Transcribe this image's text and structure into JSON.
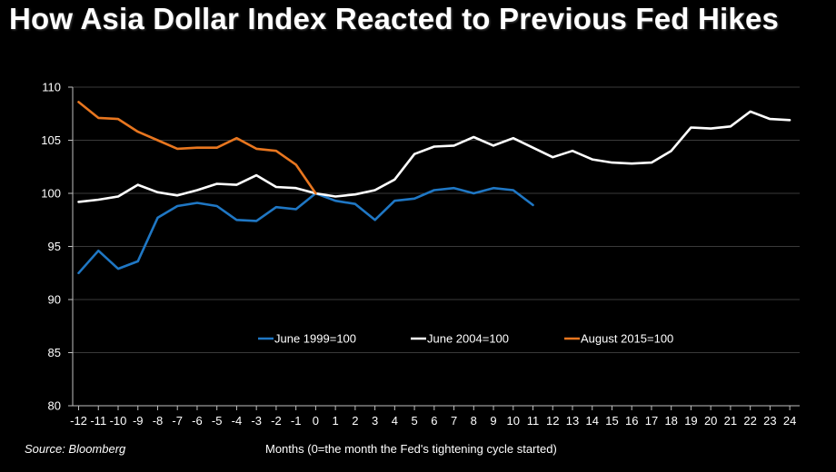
{
  "title": "How Asia Dollar Index Reacted to Previous Fed Hikes",
  "source": "Source: Bloomberg",
  "chart_data": {
    "type": "line",
    "title": "How Asia Dollar Index Reacted to Previous Fed Hikes",
    "xlabel": "Months (0=the  month the Fed's tightening cycle started)",
    "ylabel": "",
    "x": [
      -12,
      -11,
      -10,
      -9,
      -8,
      -7,
      -6,
      -5,
      -4,
      -3,
      -2,
      -1,
      0,
      1,
      2,
      3,
      4,
      5,
      6,
      7,
      8,
      9,
      10,
      11,
      12,
      13,
      14,
      15,
      16,
      17,
      18,
      19,
      20,
      21,
      22,
      23,
      24
    ],
    "xtick_labels": [
      "-12",
      "-11",
      "-10",
      "-9",
      "-8",
      "-7",
      "-6",
      "-5",
      "-4",
      "-3",
      "-2",
      "-1",
      "0",
      "1",
      "2",
      "3",
      "4",
      "5",
      "6",
      "7",
      "8",
      "9",
      "10",
      "11",
      "12",
      "13",
      "14",
      "15",
      "16",
      "17",
      "18",
      "19",
      "20",
      "21",
      "22",
      "23",
      "24"
    ],
    "yticks": [
      80,
      85,
      90,
      95,
      100,
      105,
      110
    ],
    "ylim": [
      80,
      110
    ],
    "xlim": [
      -12.3,
      24.5
    ],
    "grid": true,
    "legend_position": "center",
    "series": [
      {
        "name": "June 1999=100",
        "color": "#1f77c4",
        "x": [
          -12,
          -11,
          -10,
          -9,
          -8,
          -7,
          -6,
          -5,
          -4,
          -3,
          -2,
          -1,
          0,
          1,
          2,
          3,
          4,
          5,
          6,
          7,
          8,
          9,
          10,
          11
        ],
        "values": [
          92.5,
          94.6,
          92.9,
          93.6,
          97.7,
          98.8,
          99.1,
          98.8,
          97.5,
          97.4,
          98.7,
          98.5,
          100.0,
          99.3,
          99.0,
          97.5,
          99.3,
          99.5,
          100.3,
          100.5,
          100.0,
          100.5,
          100.3,
          98.9
        ]
      },
      {
        "name": "June 2004=100",
        "color": "#ffffff",
        "x": [
          -12,
          -11,
          -10,
          -9,
          -8,
          -7,
          -6,
          -5,
          -4,
          -3,
          -2,
          -1,
          0,
          1,
          2,
          3,
          4,
          5,
          6,
          7,
          8,
          9,
          10,
          11,
          12,
          13,
          14,
          15,
          16,
          17,
          18,
          19,
          20,
          21,
          22,
          23,
          24
        ],
        "values": [
          99.2,
          99.4,
          99.7,
          100.8,
          100.1,
          99.8,
          100.3,
          100.9,
          100.8,
          101.7,
          100.6,
          100.5,
          100.0,
          99.7,
          99.9,
          100.3,
          101.3,
          103.7,
          104.4,
          104.5,
          105.3,
          104.5,
          105.2,
          104.3,
          103.4,
          104.0,
          103.2,
          102.9,
          102.8,
          102.9,
          104.0,
          106.2,
          106.1,
          106.3,
          107.7,
          107.0,
          106.9
        ]
      },
      {
        "name": "August 2015=100",
        "color": "#e8761f",
        "x": [
          -12,
          -11,
          -10,
          -9,
          -8,
          -7,
          -6,
          -5,
          -4,
          -3,
          -2,
          -1,
          0
        ],
        "values": [
          108.6,
          107.1,
          107.0,
          105.8,
          105.0,
          104.2,
          104.3,
          104.3,
          105.2,
          104.2,
          104.0,
          102.7,
          100.0
        ]
      }
    ]
  }
}
